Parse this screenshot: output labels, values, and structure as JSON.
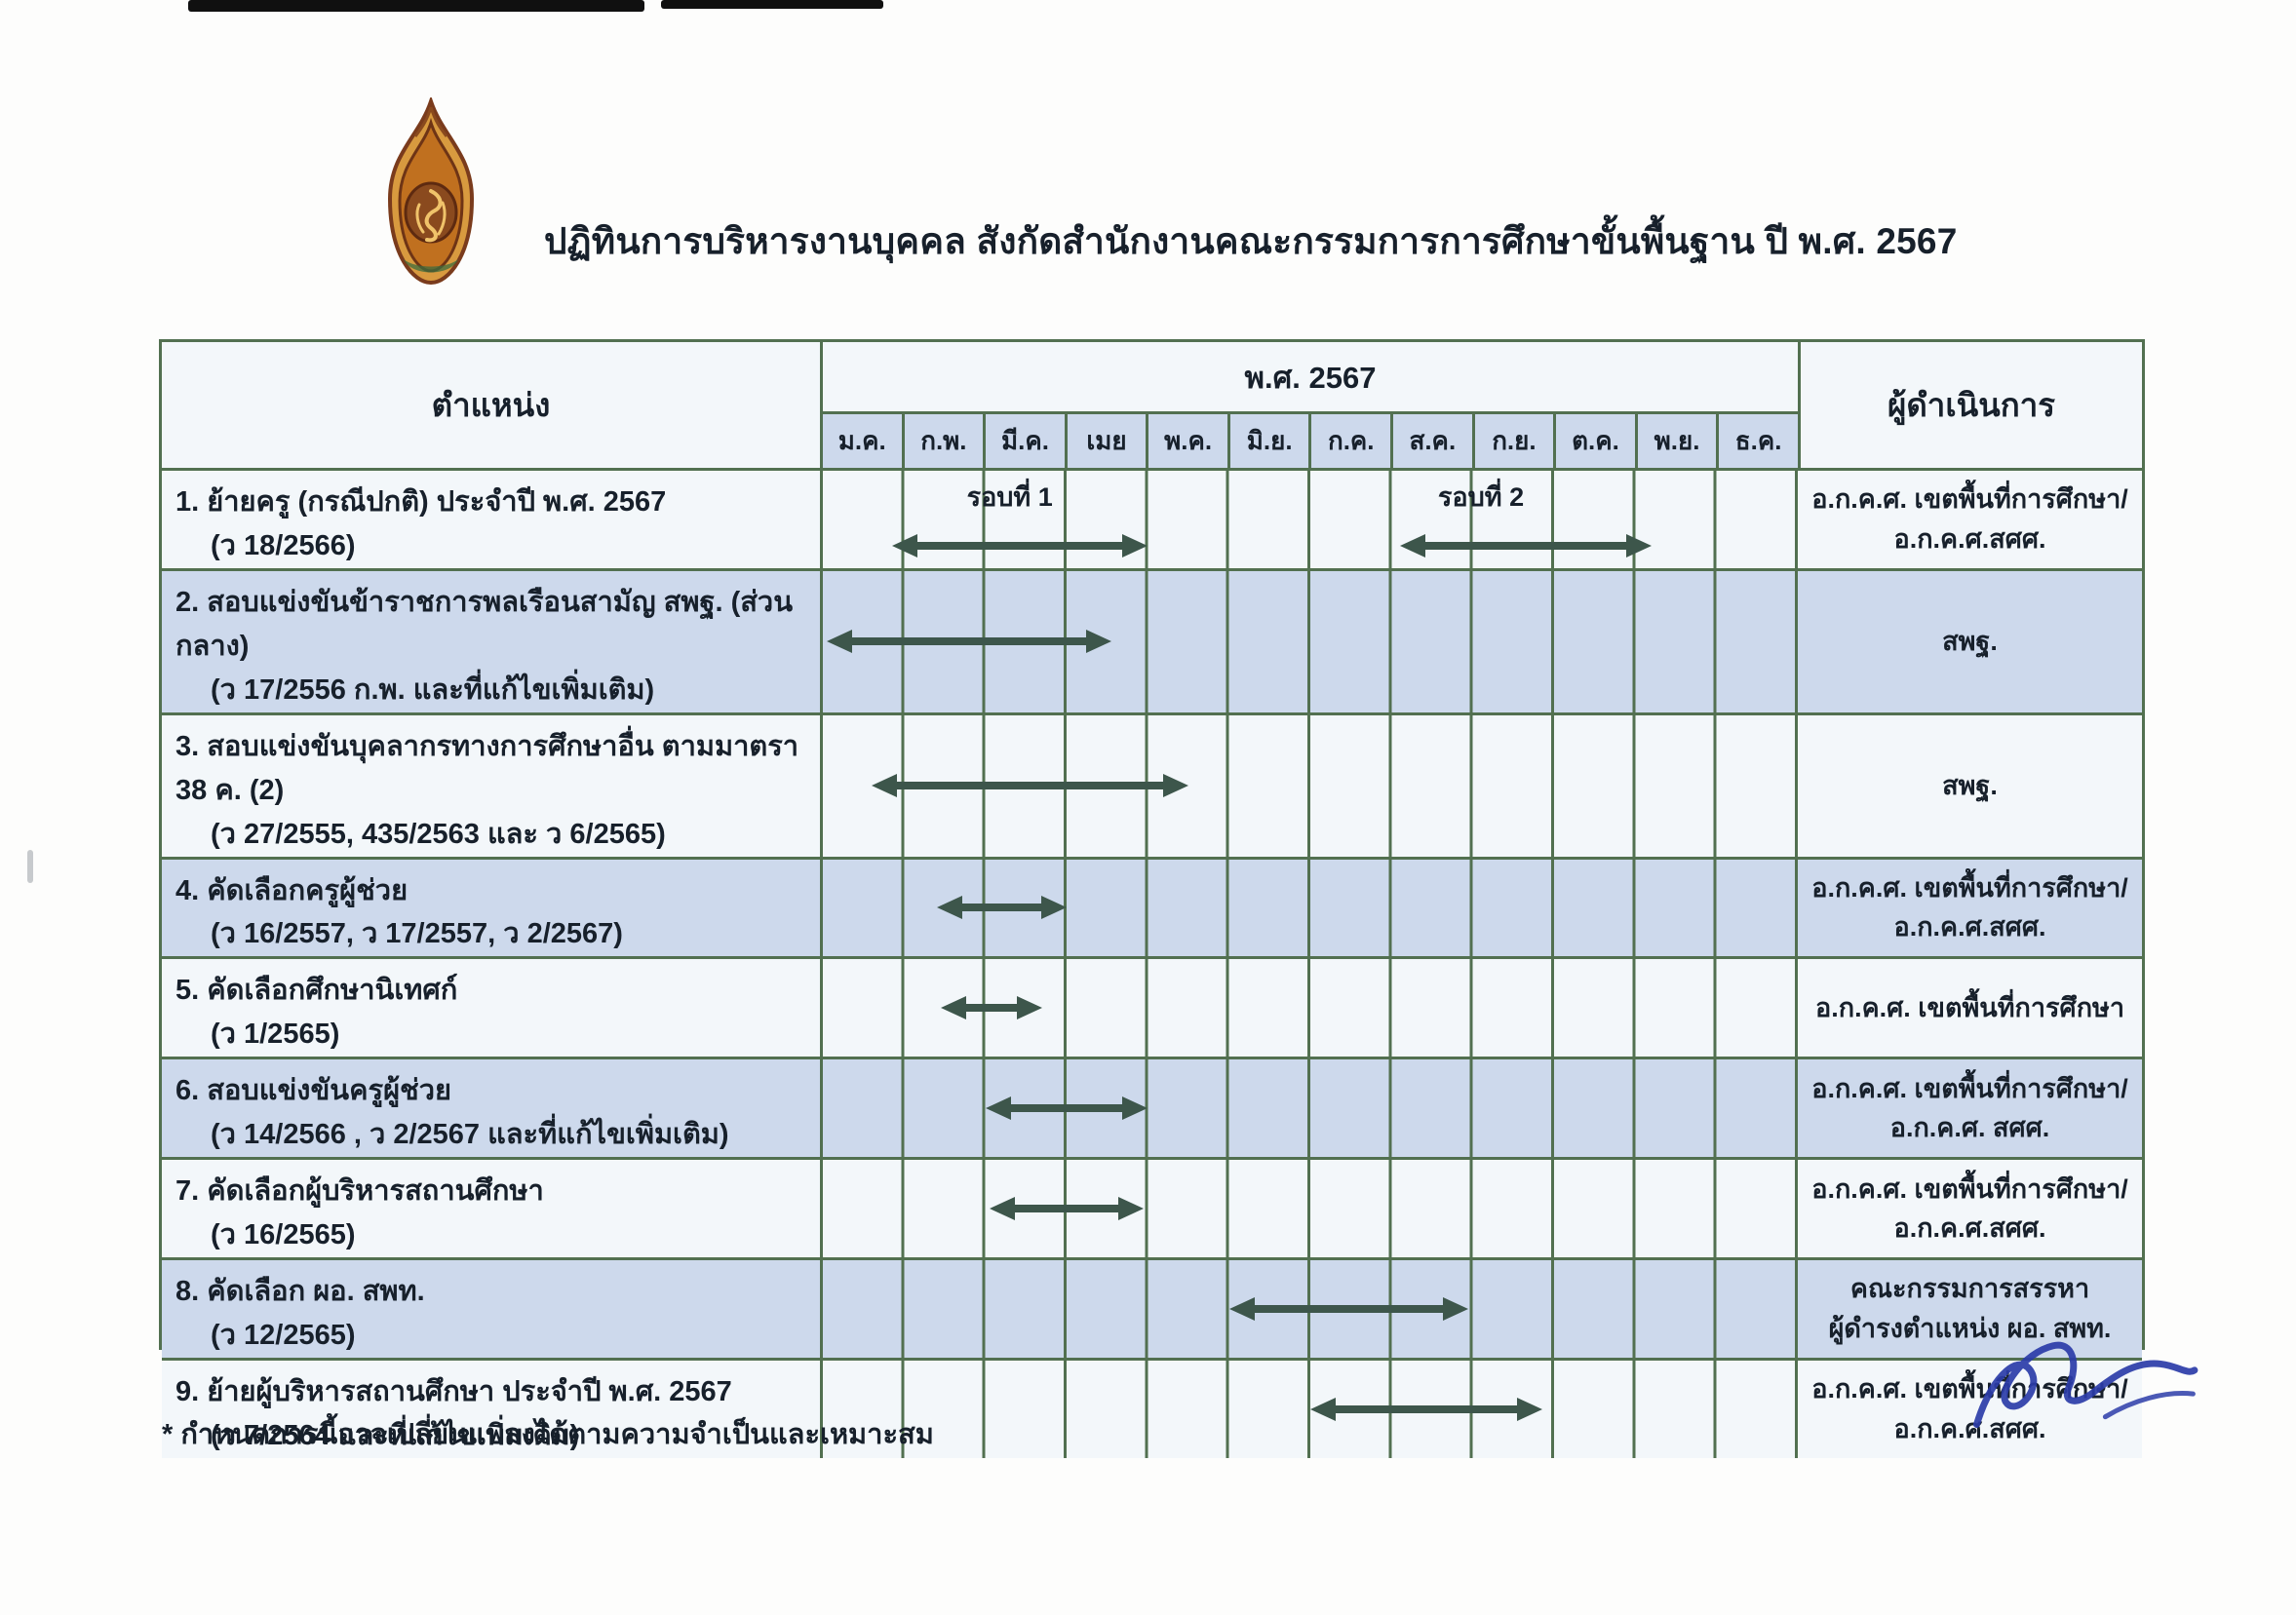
{
  "title": "ปฏิทินการบริหารงานบุคคล สังกัดสำนักงานคณะกรรมการการศึกษาขั้นพื้นฐาน ปี พ.ศ. 2567",
  "logo_name": "thai-ministry-of-education-emblem",
  "footnote": "* กำหนดการนี้อาจเปลี่ยนแปลงได้ตามความจำเป็นและเหมาะสม",
  "colors": {
    "grid_green": "#527050",
    "arrow_green": "#3d564b",
    "row_blue": "#cdd9ec",
    "row_white": "#f3f7fa",
    "signature_ink": "#2b3ca8"
  },
  "table": {
    "position_header": "ตำแหน่ง",
    "year_header": "พ.ศ. 2567",
    "operator_header": "ผู้ดำเนินการ",
    "months": [
      "ม.ค.",
      "ก.พ.",
      "มี.ค.",
      "เมย",
      "พ.ค.",
      "มิ.ย.",
      "ก.ค.",
      "ส.ค.",
      "ก.ย.",
      "ต.ค.",
      "พ.ย.",
      "ธ.ค."
    ]
  },
  "rows": [
    {
      "title": "1. ย้ายครู (กรณีปกติ) ประจำปี พ.ศ. 2567",
      "ref": "(ว 18/2566)",
      "operator": [
        "อ.ก.ค.ศ. เขตพื้นที่การศึกษา/",
        "อ.ก.ค.ศ.สศศ."
      ],
      "bars": [
        {
          "label": "รอบที่ 1",
          "label_center": 2.3,
          "start": 0.85,
          "end": 4.0
        },
        {
          "label": "รอบที่ 2",
          "label_center": 8.1,
          "start": 7.1,
          "end": 10.2
        }
      ]
    },
    {
      "title": "2. สอบแข่งขันข้าราชการพลเรือนสามัญ สพฐ. (ส่วนกลาง)",
      "ref": "(ว 17/2556 ก.พ. และที่แก้ไขเพิ่มเติม)",
      "operator": [
        "สพฐ."
      ],
      "bars": [
        {
          "start": 0.05,
          "end": 3.55
        }
      ]
    },
    {
      "title": "3. สอบแข่งขันบุคลากรทางการศึกษาอื่น ตามมาตรา 38 ค. (2)",
      "ref": "(ว 27/2555, 435/2563 และ ว 6/2565)",
      "operator": [
        "สพฐ."
      ],
      "bars": [
        {
          "start": 0.6,
          "end": 4.5
        }
      ]
    },
    {
      "title": "4. คัดเลือกครูผู้ช่วย",
      "ref": "(ว 16/2557, ว 17/2557, ว 2/2567)",
      "operator": [
        "อ.ก.ค.ศ. เขตพื้นที่การศึกษา/",
        "อ.ก.ค.ศ.สศศ."
      ],
      "bars": [
        {
          "start": 1.4,
          "end": 3.0
        }
      ]
    },
    {
      "title": "5. คัดเลือกศึกษานิเทศก์",
      "ref": "(ว 1/2565)",
      "operator": [
        "อ.ก.ค.ศ. เขตพื้นที่การศึกษา"
      ],
      "bars": [
        {
          "start": 1.45,
          "end": 2.7
        }
      ]
    },
    {
      "title": "6. สอบแข่งขันครูผู้ช่วย",
      "ref": "(ว 14/2566 , ว 2/2567 และที่แก้ไขเพิ่มเติม)",
      "operator": [
        "อ.ก.ค.ศ. เขตพื้นที่การศึกษา/",
        "อ.ก.ค.ศ. สศศ."
      ],
      "bars": [
        {
          "start": 2.0,
          "end": 4.0
        }
      ]
    },
    {
      "title": "7. คัดเลือกผู้บริหารสถานศึกษา",
      "ref": "(ว 16/2565)",
      "operator": [
        "อ.ก.ค.ศ. เขตพื้นที่การศึกษา/",
        "อ.ก.ค.ศ.สศศ."
      ],
      "bars": [
        {
          "start": 2.05,
          "end": 3.95
        }
      ]
    },
    {
      "title": "8. คัดเลือก ผอ. สพท.",
      "ref": "(ว 12/2565)",
      "operator": [
        "คณะกรรมการสรรหา",
        "ผู้ดำรงตำแหน่ง ผอ. สพท."
      ],
      "bars": [
        {
          "start": 5.0,
          "end": 7.95
        }
      ]
    },
    {
      "title": "9. ย้ายผู้บริหารสถานศึกษา ประจำปี พ.ศ. 2567",
      "ref": "(ว 7/2564 และที่แก้ไขเพิ่มเติม)",
      "operator": [
        "อ.ก.ค.ศ. เขตพื้นที่การศึกษา/",
        "อ.ก.ค.ศ.สศศ."
      ],
      "bars": [
        {
          "start": 6.0,
          "end": 8.85
        }
      ]
    }
  ]
}
